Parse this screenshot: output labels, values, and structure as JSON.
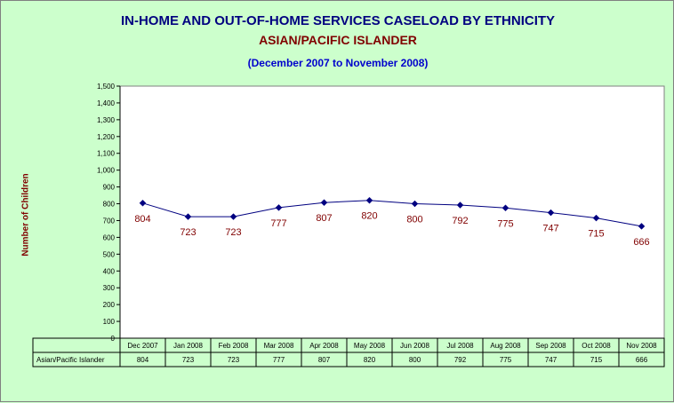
{
  "chart_data": {
    "type": "line",
    "title": "IN-HOME AND OUT-OF-HOME SERVICES CASELOAD BY ETHNICITY",
    "subtitle": "ASIAN/PACIFIC ISLANDER",
    "date_range": "(December 2007 to November 2008)",
    "xlabel": "",
    "ylabel": "Number of Children",
    "ylim": [
      0,
      1500
    ],
    "y_ticks": [
      "0",
      "100",
      "200",
      "300",
      "400",
      "500",
      "600",
      "700",
      "800",
      "900",
      "1,000",
      "1,100",
      "1,200",
      "1,300",
      "1,400",
      "1,500"
    ],
    "grid": false,
    "categories": [
      "Dec 2007",
      "Jan 2008",
      "Feb 2008",
      "Mar 2008",
      "Apr 2008",
      "May 2008",
      "Jun 2008",
      "Jul 2008",
      "Aug 2008",
      "Sep 2008",
      "Oct 2008",
      "Nov 2008"
    ],
    "series": [
      {
        "name": "Asian/Pacific Islander",
        "values": [
          804,
          723,
          723,
          777,
          807,
          820,
          800,
          792,
          775,
          747,
          715,
          666
        ],
        "labels": [
          "804",
          "723",
          "723",
          "777",
          "807",
          "820",
          "800",
          "792",
          "775",
          "747",
          "715",
          "666"
        ],
        "color": "#000080"
      }
    ],
    "data_table": true
  },
  "colors": {
    "background": "#ccffcc",
    "plot_area": "#ffffff",
    "title": "#000080",
    "subtitle": "#800000",
    "date_range": "#0000cc",
    "data_label": "#800000",
    "line": "#000080"
  }
}
